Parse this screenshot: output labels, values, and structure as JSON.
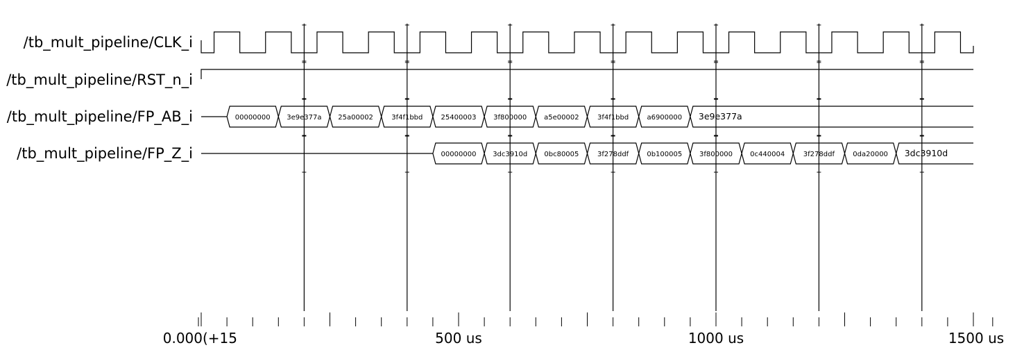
{
  "signals": [
    {
      "name": "/tb_mult_pipeline/CLK_i",
      "kind": "clock",
      "period": 100,
      "first_rise": 25,
      "start": 0,
      "end": 1500
    },
    {
      "name": "/tb_mult_pipeline/RST_n_i",
      "kind": "bit",
      "start": 0,
      "end": 1500,
      "value": 1
    },
    {
      "name": "/tb_mult_pipeline/FP_AB_i",
      "kind": "bus",
      "start": 0,
      "end": 1500,
      "segments": [
        {
          "t0": 0,
          "t1": 50,
          "value": ""
        },
        {
          "t0": 50,
          "t1": 150,
          "value": "00000000"
        },
        {
          "t0": 150,
          "t1": 250,
          "value": "3e9e377a"
        },
        {
          "t0": 250,
          "t1": 350,
          "value": "25a00002"
        },
        {
          "t0": 350,
          "t1": 450,
          "value": "3f4f1bbd"
        },
        {
          "t0": 450,
          "t1": 550,
          "value": "25400003"
        },
        {
          "t0": 550,
          "t1": 650,
          "value": "3f800000"
        },
        {
          "t0": 650,
          "t1": 750,
          "value": "a5e00002"
        },
        {
          "t0": 750,
          "t1": 850,
          "value": "3f4f1bbd"
        },
        {
          "t0": 850,
          "t1": 950,
          "value": "a6900000"
        },
        {
          "t0": 950,
          "t1": 1500,
          "value": "3e9e377a"
        }
      ]
    },
    {
      "name": "/tb_mult_pipeline/FP_Z_i",
      "kind": "bus",
      "start": 0,
      "end": 1500,
      "segments": [
        {
          "t0": 0,
          "t1": 450,
          "value": ""
        },
        {
          "t0": 450,
          "t1": 550,
          "value": "00000000"
        },
        {
          "t0": 550,
          "t1": 650,
          "value": "3dc3910d"
        },
        {
          "t0": 650,
          "t1": 750,
          "value": "0bc80005"
        },
        {
          "t0": 750,
          "t1": 850,
          "value": "3f278ddf"
        },
        {
          "t0": 850,
          "t1": 950,
          "value": "0b100005"
        },
        {
          "t0": 950,
          "t1": 1050,
          "value": "3f800000"
        },
        {
          "t0": 1050,
          "t1": 1150,
          "value": "0c440004"
        },
        {
          "t0": 1150,
          "t1": 1250,
          "value": "3f278ddf"
        },
        {
          "t0": 1250,
          "t1": 1350,
          "value": "0da20000"
        },
        {
          "t0": 1350,
          "t1": 1500,
          "value": "3dc3910d"
        }
      ]
    }
  ],
  "cursors": [
    200,
    400,
    600,
    800,
    1000,
    1200,
    1400
  ],
  "axis": {
    "t_min": 0,
    "t_max": 1500,
    "labels": [
      {
        "t": 0,
        "text": "0.000(+15"
      },
      {
        "t": 500,
        "text": "500 us"
      },
      {
        "t": 1000,
        "text": "1000 us"
      },
      {
        "t": 1500,
        "text": "1500 us"
      }
    ],
    "major_ticks": [
      0,
      250,
      500,
      750,
      1000,
      1250,
      1500
    ],
    "minor_step": 50
  }
}
